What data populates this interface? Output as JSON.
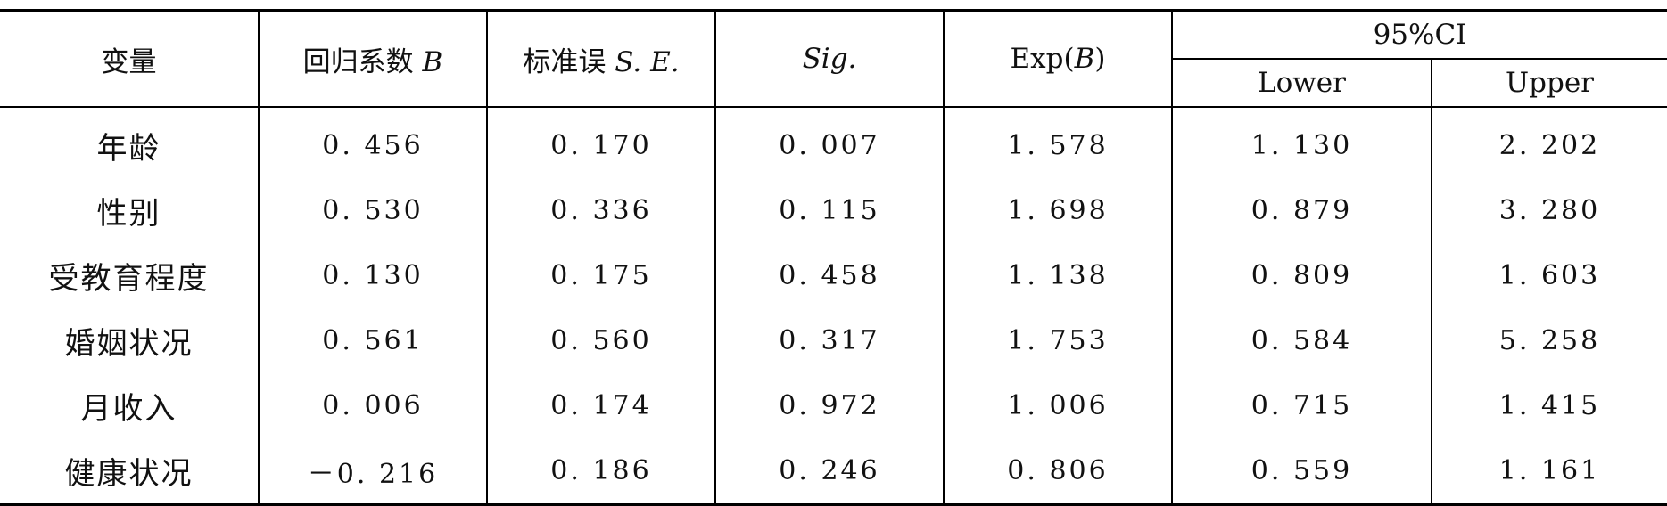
{
  "table": {
    "headers": {
      "variable": "变量",
      "b_prefix": "回归系数 ",
      "b_sym": "B",
      "se_prefix": "标准误 ",
      "se_sym": "S. E.",
      "sig": "Sig.",
      "exp_prefix": "Exp(",
      "exp_sym": "B",
      "exp_suffix": ")",
      "ci": "95%CI",
      "lower": "Lower",
      "upper": "Upper"
    },
    "rows": [
      {
        "variable": "年龄",
        "b": "0. 456",
        "se": "0. 170",
        "sig": "0. 007",
        "exp": "1. 578",
        "lower": "1. 130",
        "upper": "2. 202"
      },
      {
        "variable": "性别",
        "b": "0. 530",
        "se": "0. 336",
        "sig": "0. 115",
        "exp": "1. 698",
        "lower": "0. 879",
        "upper": "3. 280"
      },
      {
        "variable": "受教育程度",
        "b": "0. 130",
        "se": "0. 175",
        "sig": "0. 458",
        "exp": "1. 138",
        "lower": "0. 809",
        "upper": "1. 603"
      },
      {
        "variable": "婚姻状况",
        "b": "0. 561",
        "se": "0. 560",
        "sig": "0. 317",
        "exp": "1. 753",
        "lower": "0. 584",
        "upper": "5. 258"
      },
      {
        "variable": "月收入",
        "b": "0. 006",
        "se": "0. 174",
        "sig": "0. 972",
        "exp": "1. 006",
        "lower": "0. 715",
        "upper": "1. 415"
      },
      {
        "variable": "健康状况",
        "b": "－0. 216",
        "se": "0. 186",
        "sig": "0. 246",
        "exp": "0. 806",
        "lower": "0. 559",
        "upper": "1. 161"
      }
    ]
  }
}
